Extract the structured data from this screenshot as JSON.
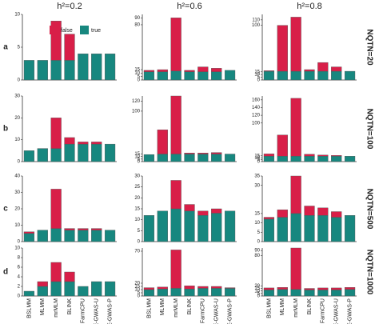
{
  "column_titles": [
    "h²=0.2",
    "h²=0.6",
    "h²=0.8"
  ],
  "row_letters": [
    "a",
    "b",
    "c",
    "d"
  ],
  "row_labels": [
    "NQTN=20",
    "NQTN=100",
    "NQTN=500",
    "NQTN=1000"
  ],
  "categories": [
    "BSLMM",
    "MLMM",
    "mrMLM",
    "BLINK",
    "FarmCPU",
    "E-GWAS-U",
    "E-GWAS-P"
  ],
  "chart_data": [
    {
      "type": "bar",
      "stacked": true,
      "ylim": [
        0,
        10
      ],
      "yticks": [
        0,
        5,
        10
      ],
      "series": [
        {
          "name": "true",
          "color": "#17877f",
          "values": [
            3,
            3,
            3,
            3,
            4,
            4,
            4
          ]
        },
        {
          "name": "false",
          "color": "#d81f48",
          "values": [
            0,
            0,
            6,
            4,
            0,
            0,
            0
          ]
        }
      ]
    },
    {
      "type": "bar",
      "stacked": true,
      "ylim": [
        0,
        95
      ],
      "yticks": [
        0,
        5,
        10,
        15,
        80,
        90
      ],
      "series": [
        {
          "name": "true",
          "color": "#17877f",
          "values": [
            12,
            12,
            13,
            12,
            12,
            12,
            14
          ]
        },
        {
          "name": "false",
          "color": "#d81f48",
          "values": [
            2,
            3,
            77,
            2,
            7,
            5,
            0
          ]
        }
      ]
    },
    {
      "type": "bar",
      "stacked": true,
      "ylim": [
        0,
        120
      ],
      "yticks": [
        0,
        5,
        10,
        15,
        100,
        110
      ],
      "series": [
        {
          "name": "true",
          "color": "#17877f",
          "values": [
            16,
            16,
            16,
            16,
            16,
            16,
            16
          ]
        },
        {
          "name": "false",
          "color": "#d81f48",
          "values": [
            1,
            84,
            99,
            3,
            16,
            8,
            0
          ]
        }
      ]
    },
    {
      "type": "bar",
      "stacked": true,
      "ylim": [
        0,
        30
      ],
      "yticks": [
        0,
        10,
        20,
        30
      ],
      "series": [
        {
          "name": "true",
          "color": "#17877f",
          "values": [
            5,
            6,
            6,
            8,
            8,
            8,
            8
          ]
        },
        {
          "name": "false",
          "color": "#d81f48",
          "values": [
            0,
            0,
            14,
            3,
            1,
            1,
            0
          ]
        }
      ]
    },
    {
      "type": "bar",
      "stacked": true,
      "ylim": [
        0,
        130
      ],
      "yticks": [
        0,
        5,
        10,
        15,
        100,
        120
      ],
      "series": [
        {
          "name": "true",
          "color": "#17877f",
          "values": [
            14,
            15,
            15,
            15,
            15,
            15,
            15
          ]
        },
        {
          "name": "false",
          "color": "#d81f48",
          "values": [
            0,
            48,
            115,
            2,
            2,
            3,
            0
          ]
        }
      ]
    },
    {
      "type": "bar",
      "stacked": true,
      "ylim": [
        0,
        170
      ],
      "yticks": [
        0,
        5,
        10,
        15,
        100,
        120,
        140,
        160
      ],
      "series": [
        {
          "name": "true",
          "color": "#17877f",
          "values": [
            14,
            14,
            14,
            14,
            14,
            14,
            14
          ]
        },
        {
          "name": "false",
          "color": "#d81f48",
          "values": [
            6,
            55,
            150,
            5,
            3,
            2,
            0
          ]
        }
      ]
    },
    {
      "type": "bar",
      "stacked": true,
      "ylim": [
        0,
        40
      ],
      "yticks": [
        0,
        10,
        20,
        30,
        40
      ],
      "series": [
        {
          "name": "true",
          "color": "#17877f",
          "values": [
            5,
            7,
            8,
            7,
            7,
            7,
            7
          ]
        },
        {
          "name": "false",
          "color": "#d81f48",
          "values": [
            1,
            0,
            24,
            1,
            1,
            1,
            0
          ]
        }
      ]
    },
    {
      "type": "bar",
      "stacked": true,
      "ylim": [
        0,
        30
      ],
      "yticks": [
        0,
        5,
        10,
        15,
        20,
        25,
        30
      ],
      "series": [
        {
          "name": "true",
          "color": "#17877f",
          "values": [
            12,
            14,
            15,
            14,
            12,
            13,
            14
          ]
        },
        {
          "name": "false",
          "color": "#d81f48",
          "values": [
            0,
            0,
            13,
            3,
            2,
            2,
            0
          ]
        }
      ]
    },
    {
      "type": "bar",
      "stacked": true,
      "ylim": [
        0,
        35
      ],
      "yticks": [
        0,
        5,
        10,
        15,
        30,
        35
      ],
      "series": [
        {
          "name": "true",
          "color": "#17877f",
          "values": [
            12,
            13,
            15,
            14,
            14,
            13,
            14
          ]
        },
        {
          "name": "false",
          "color": "#d81f48",
          "values": [
            1,
            4,
            20,
            5,
            4,
            3,
            0
          ]
        }
      ]
    },
    {
      "type": "bar",
      "stacked": true,
      "ylim": [
        0,
        10
      ],
      "yticks": [
        0,
        2,
        4,
        6,
        8,
        10
      ],
      "series": [
        {
          "name": "true",
          "color": "#17877f",
          "values": [
            1,
            2,
            3,
            3,
            2,
            3,
            3
          ]
        },
        {
          "name": "false",
          "color": "#d81f48",
          "values": [
            0,
            1,
            4,
            2,
            0,
            0,
            0
          ]
        }
      ]
    },
    {
      "type": "bar",
      "stacked": true,
      "ylim": [
        0,
        75
      ],
      "yticks": [
        0,
        5,
        10,
        15,
        20,
        70
      ],
      "series": [
        {
          "name": "true",
          "color": "#17877f",
          "values": [
            10,
            11,
            12,
            11,
            12,
            12,
            12
          ]
        },
        {
          "name": "false",
          "color": "#d81f48",
          "values": [
            3,
            3,
            60,
            5,
            3,
            3,
            1
          ]
        }
      ]
    },
    {
      "type": "bar",
      "stacked": true,
      "ylim": [
        0,
        95
      ],
      "yticks": [
        0,
        5,
        10,
        15,
        20,
        80,
        90
      ],
      "series": [
        {
          "name": "true",
          "color": "#17877f",
          "values": [
            12,
            13,
            13,
            12,
            12,
            12,
            13
          ]
        },
        {
          "name": "false",
          "color": "#d81f48",
          "values": [
            4,
            4,
            82,
            3,
            4,
            4,
            4
          ]
        }
      ]
    }
  ]
}
